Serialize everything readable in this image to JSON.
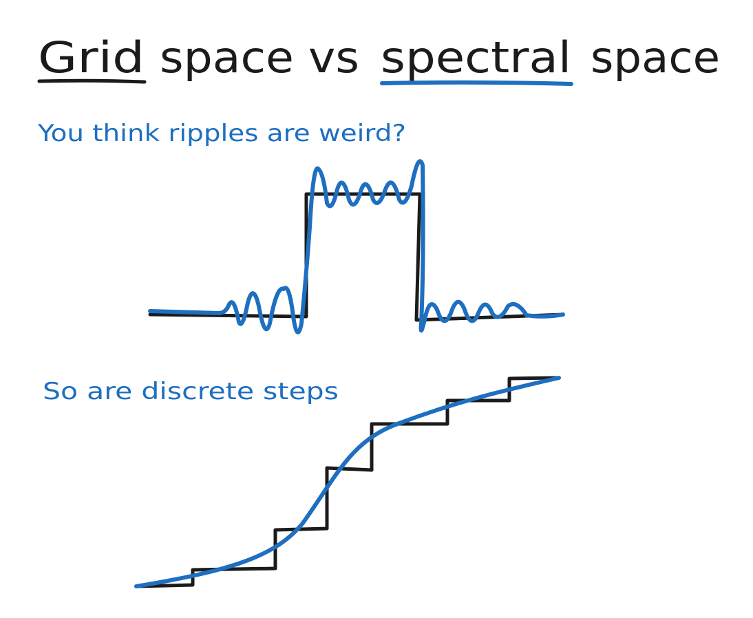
{
  "title": {
    "grid": "Grid",
    "middle": "space vs",
    "spectral": "spectral",
    "end": "space"
  },
  "captions": [
    "You think ripples are weird?",
    "So are discrete steps"
  ]
}
